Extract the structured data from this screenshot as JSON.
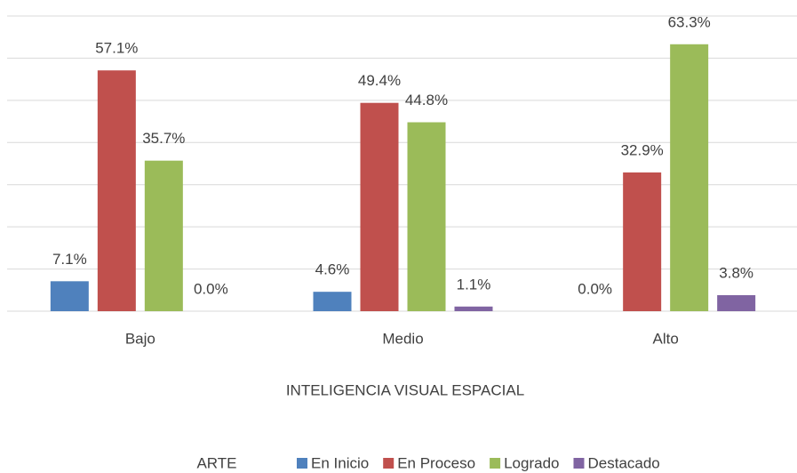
{
  "chart_data": {
    "type": "bar",
    "categories": [
      "Bajo",
      "Medio",
      "Alto"
    ],
    "series": [
      {
        "name": "En Inicio",
        "color": "#4f81bd",
        "values": [
          7.1,
          4.6,
          0.0
        ],
        "value_labels": [
          "7.1%",
          "4.6%",
          "0.0%"
        ]
      },
      {
        "name": "En Proceso",
        "color": "#c0504d",
        "values": [
          57.1,
          49.4,
          32.9
        ],
        "value_labels": [
          "57.1%",
          "49.4%",
          "32.9%"
        ]
      },
      {
        "name": "Logrado",
        "color": "#9bbb59",
        "values": [
          35.7,
          44.8,
          63.3
        ],
        "value_labels": [
          "35.7%",
          "44.8%",
          "63.3%"
        ]
      },
      {
        "name": "Destacado",
        "color": "#8064a2",
        "values": [
          0.0,
          1.1,
          3.8
        ],
        "value_labels": [
          "0.0%",
          "1.1%",
          "3.8%"
        ]
      }
    ],
    "xlabel": "INTELIGENCIA VISUAL ESPACIAL",
    "legend_title": "ARTE",
    "legend": "bottom",
    "ylim": [
      0,
      70
    ],
    "yticks": [
      0,
      10,
      20,
      30,
      40,
      50,
      60,
      70
    ],
    "grid": true
  }
}
